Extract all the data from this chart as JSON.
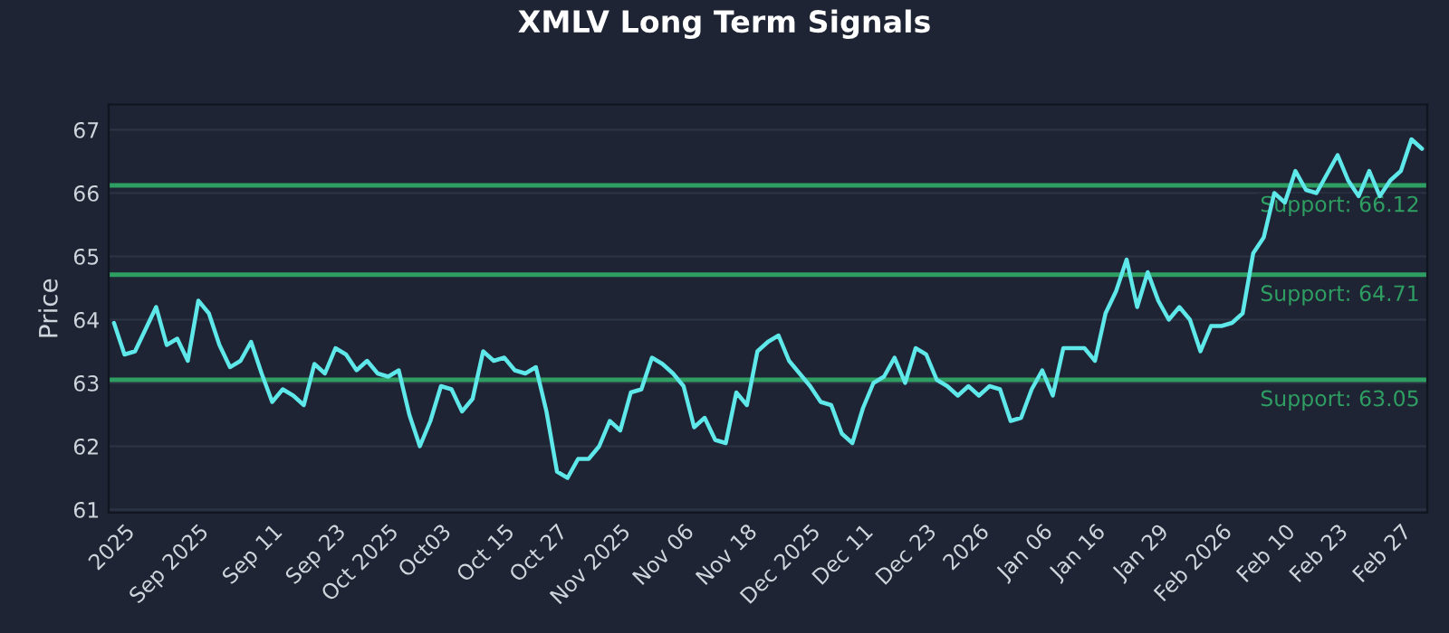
{
  "chart_data": {
    "type": "line",
    "title": "XMLV Long Term Signals",
    "ylabel": "Price",
    "categories": [
      null,
      "2025",
      null,
      null,
      null,
      null,
      null,
      null,
      "Sep 2025",
      null,
      null,
      null,
      null,
      null,
      null,
      "Sep 11",
      null,
      null,
      null,
      null,
      null,
      "Sep 23",
      null,
      null,
      null,
      null,
      "Oct 2025",
      null,
      null,
      null,
      null,
      "Oct03",
      null,
      null,
      null,
      null,
      null,
      "Oct 15",
      null,
      null,
      null,
      null,
      "Oct 27",
      null,
      null,
      null,
      null,
      null,
      "Nov 2025",
      null,
      null,
      null,
      null,
      null,
      "Nov 06",
      null,
      null,
      null,
      null,
      null,
      "Nov 18",
      null,
      null,
      null,
      null,
      null,
      "Dec 2025",
      null,
      null,
      null,
      null,
      "Dec 11",
      null,
      null,
      null,
      null,
      null,
      "Dec 23",
      null,
      null,
      null,
      null,
      "2026",
      null,
      null,
      null,
      null,
      null,
      "Jan 06",
      null,
      null,
      null,
      null,
      "Jan 16",
      null,
      null,
      null,
      null,
      null,
      "Jan 29",
      null,
      null,
      null,
      null,
      null,
      "Feb 2026",
      null,
      null,
      null,
      null,
      null,
      "Feb 10",
      null,
      null,
      null,
      null,
      "Feb 23",
      null,
      null,
      null,
      null,
      null,
      "Feb 27",
      null,
      null
    ],
    "series": [
      {
        "color": "#5ee8ea",
        "values": [
          63.95,
          63.45,
          63.5,
          63.85,
          64.2,
          63.6,
          63.7,
          63.35,
          64.3,
          64.1,
          63.6,
          63.25,
          63.35,
          63.65,
          63.15,
          62.7,
          62.9,
          62.8,
          62.65,
          63.3,
          63.15,
          63.55,
          63.45,
          63.2,
          63.35,
          63.15,
          63.1,
          63.2,
          62.5,
          62.0,
          62.4,
          62.95,
          62.9,
          62.55,
          62.75,
          63.5,
          63.35,
          63.4,
          63.2,
          63.15,
          63.25,
          62.55,
          61.6,
          61.5,
          61.8,
          61.8,
          62.0,
          62.4,
          62.25,
          62.85,
          62.9,
          63.4,
          63.3,
          63.15,
          62.95,
          62.3,
          62.45,
          62.1,
          62.05,
          62.85,
          62.65,
          63.5,
          63.65,
          63.75,
          63.35,
          63.15,
          62.95,
          62.7,
          62.65,
          62.2,
          62.05,
          62.6,
          63.0,
          63.1,
          63.4,
          63.0,
          63.55,
          63.45,
          63.05,
          62.95,
          62.8,
          62.95,
          62.8,
          62.95,
          62.9,
          62.4,
          62.45,
          62.9,
          63.2,
          62.8,
          63.55,
          63.55,
          63.55,
          63.35,
          64.1,
          64.45,
          64.95,
          64.2,
          64.75,
          64.3,
          64.0,
          64.2,
          64.0,
          63.5,
          63.9,
          63.9,
          63.95,
          64.1,
          65.05,
          65.3,
          66.0,
          65.85,
          66.35,
          66.05,
          66.0,
          66.3,
          66.6,
          66.2,
          65.95,
          66.35,
          65.95,
          66.2,
          66.35,
          66.85,
          66.7
        ]
      }
    ],
    "ylim": [
      60.95,
      67.4
    ],
    "yticks": [
      61,
      62,
      63,
      64,
      65,
      66,
      67
    ],
    "grid": "y",
    "legend": false,
    "ref_lines": [
      {
        "axis": "y",
        "value": 66.12,
        "label": "Support: 66.12",
        "color": "#2e9e62"
      },
      {
        "axis": "y",
        "value": 64.71,
        "label": "Support: 64.71",
        "color": "#2e9e62"
      },
      {
        "axis": "y",
        "value": 63.05,
        "label": "Support: 63.05",
        "color": "#2e9e62"
      }
    ]
  }
}
